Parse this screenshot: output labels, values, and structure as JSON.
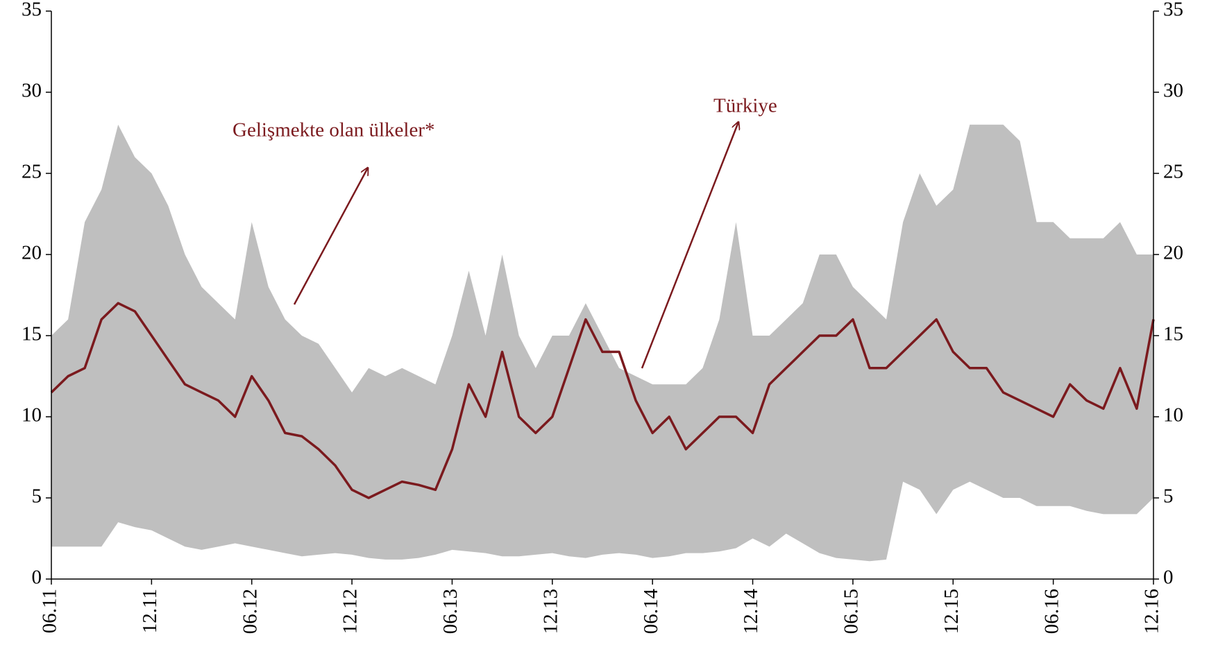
{
  "chart_data": {
    "type": "band-line",
    "categories": [
      "06.11",
      null,
      null,
      null,
      null,
      null,
      "12.11",
      null,
      null,
      null,
      null,
      null,
      "06.12",
      null,
      null,
      null,
      null,
      null,
      "12.12",
      null,
      null,
      null,
      null,
      null,
      "06.13",
      null,
      null,
      null,
      null,
      null,
      "12.13",
      null,
      null,
      null,
      null,
      null,
      "06.14",
      null,
      null,
      null,
      null,
      null,
      "12.14",
      null,
      null,
      null,
      null,
      null,
      "06.15",
      null,
      null,
      null,
      null,
      null,
      "12.15",
      null,
      null,
      null,
      null,
      null,
      "06.16",
      null,
      null,
      null,
      null,
      null,
      "12.16"
    ],
    "band": {
      "name": "Gelişmekte olan ülkeler*",
      "color": "#bfbfbf",
      "high": [
        15,
        16,
        22,
        24,
        28,
        26,
        25,
        23,
        20,
        18,
        17,
        16,
        22,
        18,
        16,
        15,
        14.5,
        13,
        11.5,
        13,
        12.5,
        13,
        12.5,
        12,
        15,
        19,
        15,
        20,
        15,
        13,
        15,
        15,
        17,
        15,
        13,
        12.5,
        12,
        12,
        12,
        13,
        16,
        22,
        15,
        15,
        16,
        17,
        20,
        20,
        18,
        17,
        16,
        22,
        25,
        23,
        24,
        28,
        28,
        28,
        27,
        22,
        22,
        21,
        21,
        21,
        22,
        20,
        20
      ],
      "low": [
        2,
        2,
        2,
        2,
        3.5,
        3.2,
        3,
        2.5,
        2,
        1.8,
        2,
        2.2,
        2,
        1.8,
        1.6,
        1.4,
        1.5,
        1.6,
        1.5,
        1.3,
        1.2,
        1.2,
        1.3,
        1.5,
        1.8,
        1.7,
        1.6,
        1.4,
        1.4,
        1.5,
        1.6,
        1.4,
        1.3,
        1.5,
        1.6,
        1.5,
        1.3,
        1.4,
        1.6,
        1.6,
        1.7,
        1.9,
        2.5,
        2,
        2.8,
        2.2,
        1.6,
        1.3,
        1.2,
        1.1,
        1.2,
        6,
        5.5,
        4,
        5.5,
        6,
        5.5,
        5,
        5,
        4.5,
        4.5,
        4.5,
        4.2,
        4,
        4,
        4,
        5
      ]
    },
    "series": [
      {
        "name": "Türkiye",
        "color": "#7b1a1e",
        "values": [
          11.5,
          12.5,
          13,
          16,
          17,
          16.5,
          15,
          13.5,
          12,
          11.5,
          11,
          10,
          12.5,
          11,
          9,
          8.8,
          8,
          7,
          5.5,
          5,
          5.5,
          6,
          5.8,
          5.5,
          8,
          12,
          10,
          14,
          10,
          9,
          10,
          13,
          16,
          14,
          14,
          11,
          9,
          10,
          8,
          9,
          10,
          10,
          9,
          12,
          13,
          14,
          15,
          15,
          16,
          13,
          13,
          14,
          15,
          16,
          14,
          13,
          13,
          11.5,
          11,
          10.5,
          10,
          12,
          11,
          10.5,
          13,
          10.5,
          16
        ]
      }
    ],
    "ylim": [
      0,
      35
    ],
    "yticks": [
      0,
      5,
      10,
      15,
      20,
      25,
      30,
      35
    ],
    "y2lim": [
      0,
      35
    ],
    "y2ticks": [
      0,
      5,
      10,
      15,
      20,
      25,
      30,
      35
    ]
  }
}
